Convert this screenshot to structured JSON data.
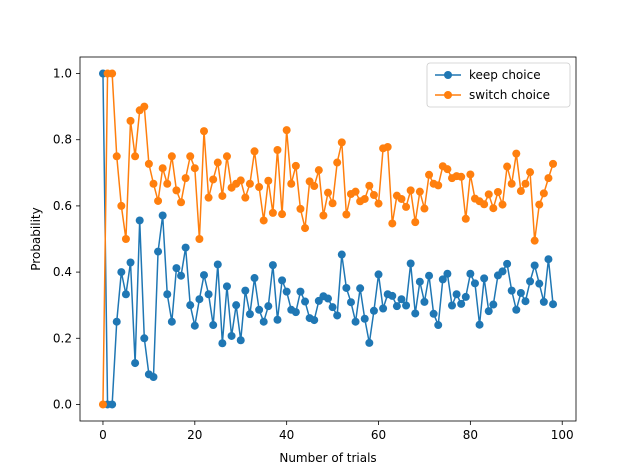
{
  "chart_data": {
    "type": "line",
    "title": "",
    "xlabel": "Number of trials",
    "ylabel": "Probability",
    "xlim": [
      -5.0,
      103.0
    ],
    "ylim": [
      -0.05,
      1.05
    ],
    "xticks": [
      0,
      20,
      40,
      60,
      80,
      100
    ],
    "xtick_labels": [
      "0",
      "20",
      "40",
      "60",
      "80",
      "100"
    ],
    "yticks": [
      0.0,
      0.2,
      0.4,
      0.6,
      0.8,
      1.0
    ],
    "ytick_labels": [
      "0.0",
      "0.2",
      "0.4",
      "0.6",
      "0.8",
      "1.0"
    ],
    "grid": false,
    "legend_position": "top-right",
    "marker": "circle",
    "x": [
      0,
      1,
      2,
      3,
      4,
      5,
      6,
      7,
      8,
      9,
      10,
      11,
      12,
      13,
      14,
      15,
      16,
      17,
      18,
      19,
      20,
      21,
      22,
      23,
      24,
      25,
      26,
      27,
      28,
      29,
      30,
      31,
      32,
      33,
      34,
      35,
      36,
      37,
      38,
      39,
      40,
      41,
      42,
      43,
      44,
      45,
      46,
      47,
      48,
      49,
      50,
      51,
      52,
      53,
      54,
      55,
      56,
      57,
      58,
      59,
      60,
      61,
      62,
      63,
      64,
      65,
      66,
      67,
      68,
      69,
      70,
      71,
      72,
      73,
      74,
      75,
      76,
      77,
      78,
      79,
      80,
      81,
      82,
      83,
      84,
      85,
      86,
      87,
      88,
      89,
      90,
      91,
      92,
      93,
      94,
      95,
      96,
      97,
      98
    ],
    "series": [
      {
        "name": "keep choice",
        "color": "#1f77b4",
        "values": [
          1.0,
          0.0,
          0.0,
          0.25,
          0.4,
          0.333,
          0.429,
          0.125,
          0.556,
          0.2,
          0.091,
          0.083,
          0.462,
          0.571,
          0.333,
          0.25,
          0.412,
          0.389,
          0.474,
          0.3,
          0.238,
          0.318,
          0.391,
          0.333,
          0.24,
          0.423,
          0.185,
          0.357,
          0.207,
          0.3,
          0.194,
          0.344,
          0.273,
          0.382,
          0.286,
          0.25,
          0.297,
          0.421,
          0.256,
          0.375,
          0.341,
          0.286,
          0.279,
          0.341,
          0.311,
          0.261,
          0.255,
          0.313,
          0.327,
          0.32,
          0.294,
          0.269,
          0.453,
          0.352,
          0.309,
          0.25,
          0.351,
          0.259,
          0.186,
          0.283,
          0.393,
          0.29,
          0.333,
          0.328,
          0.297,
          0.318,
          0.299,
          0.426,
          0.275,
          0.371,
          0.31,
          0.389,
          0.274,
          0.24,
          0.378,
          0.395,
          0.299,
          0.333,
          0.304,
          0.325,
          0.395,
          0.366,
          0.241,
          0.381,
          0.282,
          0.302,
          0.39,
          0.402,
          0.425,
          0.344,
          0.286,
          0.337,
          0.312,
          0.372,
          0.42,
          0.365,
          0.31,
          0.439,
          0.303
        ]
      },
      {
        "name": "switch choice",
        "color": "#ff7f0e",
        "values": [
          0.0,
          1.0,
          1.0,
          0.75,
          0.6,
          0.5,
          0.857,
          0.75,
          0.889,
          0.9,
          0.727,
          0.667,
          0.615,
          0.714,
          0.667,
          0.75,
          0.647,
          0.611,
          0.684,
          0.75,
          0.714,
          0.5,
          0.826,
          0.625,
          0.68,
          0.731,
          0.63,
          0.75,
          0.655,
          0.667,
          0.677,
          0.625,
          0.667,
          0.765,
          0.657,
          0.556,
          0.676,
          0.579,
          0.769,
          0.575,
          0.829,
          0.667,
          0.721,
          0.591,
          0.533,
          0.674,
          0.66,
          0.708,
          0.571,
          0.64,
          0.608,
          0.731,
          0.792,
          0.574,
          0.636,
          0.643,
          0.614,
          0.621,
          0.661,
          0.633,
          0.607,
          0.774,
          0.778,
          0.547,
          0.631,
          0.621,
          0.597,
          0.647,
          0.551,
          0.643,
          0.592,
          0.694,
          0.667,
          0.662,
          0.72,
          0.711,
          0.684,
          0.69,
          0.688,
          0.561,
          0.695,
          0.622,
          0.614,
          0.605,
          0.635,
          0.593,
          0.642,
          0.604,
          0.719,
          0.667,
          0.758,
          0.645,
          0.667,
          0.702,
          0.495,
          0.604,
          0.638,
          0.684,
          0.727
        ]
      }
    ]
  }
}
